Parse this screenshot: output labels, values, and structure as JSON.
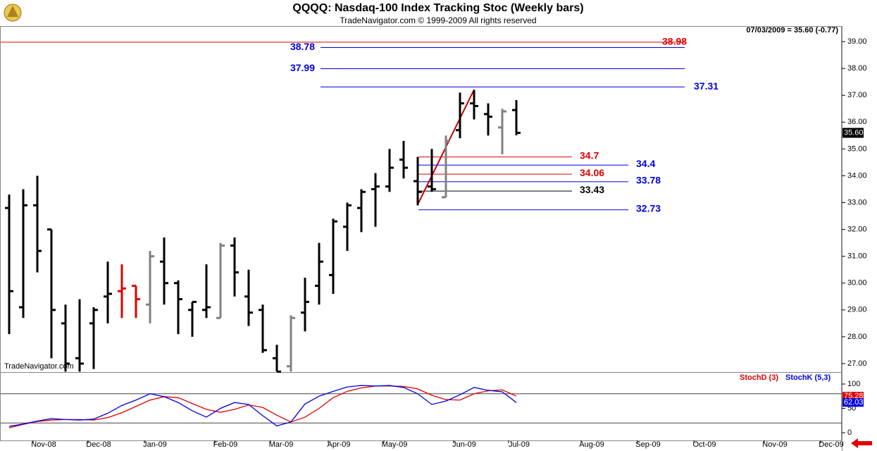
{
  "title": "QQQQ:  Nasdaq-100 Index Tracking Stoc  (Weekly bars)",
  "subtitle": "TradeNavigator.com © 1999-2009 All rights reserved",
  "status": "07/03/2009 = 35.60 (-0.77)",
  "watermark": "TradeNavigator.com",
  "chart_data": [
    {
      "type": "ohlc",
      "x": [
        0,
        1,
        2,
        3,
        4,
        5,
        6,
        7,
        8,
        9,
        10,
        11,
        12,
        13,
        14,
        15,
        16,
        17,
        18,
        19,
        20,
        21,
        22,
        23,
        24,
        25,
        26,
        27,
        28,
        29,
        30,
        31,
        32,
        33,
        34,
        35,
        36
      ],
      "open": [
        32.8,
        29.1,
        32.9,
        32.0,
        28.5,
        27.2,
        28.5,
        29.5,
        29.7,
        29.9,
        29.2,
        30.8,
        30.0,
        29.0,
        29.0,
        28.7,
        31.4,
        29.5,
        29.0,
        27.2,
        26.9,
        28.9,
        29.9,
        30.3,
        32.1,
        32.8,
        33.5,
        33.6,
        34.6,
        33.8,
        33.6,
        33.2,
        35.7,
        36.7,
        36.3,
        35.8,
        36.45
      ],
      "high": [
        33.3,
        33.5,
        34.0,
        32.0,
        29.2,
        29.4,
        29.1,
        30.8,
        30.7,
        29.9,
        31.2,
        31.7,
        30.1,
        29.3,
        30.7,
        31.5,
        31.7,
        30.5,
        29.2,
        27.7,
        28.8,
        30.2,
        31.5,
        32.4,
        33.0,
        33.5,
        34.1,
        35.0,
        35.3,
        34.7,
        35.0,
        35.5,
        37.1,
        37.2,
        36.7,
        36.5,
        36.82
      ],
      "low": [
        28.1,
        28.7,
        30.4,
        27.2,
        26.7,
        26.7,
        26.8,
        28.5,
        28.7,
        28.7,
        28.5,
        29.2,
        28.1,
        28.0,
        28.7,
        28.7,
        29.5,
        28.4,
        27.4,
        26.7,
        26.7,
        28.2,
        29.2,
        29.6,
        31.2,
        31.9,
        32.1,
        33.4,
        33.9,
        32.9,
        33.4,
        33.2,
        35.4,
        36.1,
        35.5,
        34.8,
        35.51
      ],
      "close": [
        29.7,
        32.9,
        31.2,
        29.0,
        27.0,
        27.0,
        29.0,
        29.6,
        29.8,
        29.4,
        31.0,
        30.0,
        29.4,
        29.3,
        29.1,
        31.4,
        30.4,
        28.9,
        27.5,
        26.7,
        28.7,
        29.3,
        30.8,
        32.3,
        32.9,
        33.4,
        33.6,
        34.3,
        34.3,
        33.4,
        33.5,
        35.3,
        36.7,
        36.6,
        36.2,
        36.4,
        35.6
      ],
      "colors": [
        "#000",
        "#000",
        "#000",
        "#000",
        "#000",
        "#000",
        "#000",
        "#000",
        "#e00000",
        "#e00000",
        "#808080",
        "#000",
        "#000",
        "#000",
        "#000",
        "#808080",
        "#000",
        "#000",
        "#000",
        "#000",
        "#808080",
        "#000",
        "#000",
        "#000",
        "#000",
        "#000",
        "#000",
        "#000",
        "#000",
        "#000",
        "#000",
        "#808080",
        "#000",
        "#000",
        "#000",
        "#808080",
        "#000"
      ],
      "last_close_label": "35.60",
      "levels": [
        {
          "value": 38.98,
          "color": "#e00000"
        },
        {
          "value": 38.78,
          "color": "#0000e0"
        },
        {
          "value": 37.99,
          "color": "#0000e0"
        },
        {
          "value": 37.31,
          "color": "#0000e0"
        },
        {
          "value": 34.7,
          "color": "#e00000"
        },
        {
          "value": 34.4,
          "color": "#0000e0"
        },
        {
          "value": 34.06,
          "color": "#e00000"
        },
        {
          "value": 33.78,
          "color": "#0000e0"
        },
        {
          "value": 33.43,
          "color": "#000"
        },
        {
          "value": 32.73,
          "color": "#0000e0"
        }
      ],
      "trendline": {
        "x": [
          29,
          33
        ],
        "y": [
          32.93,
          37.21
        ],
        "color": "#c00000"
      },
      "xlim": [
        -0.6,
        59.1
      ],
      "ylim": [
        26.71,
        39.58
      ],
      "yticks": [
        {
          "value": 27,
          "label": "27.00"
        },
        {
          "value": 28,
          "label": "28.00"
        },
        {
          "value": 29,
          "label": "29.00"
        },
        {
          "value": 30,
          "label": "30.00"
        },
        {
          "value": 31,
          "label": "31.00"
        },
        {
          "value": 32,
          "label": "32.00"
        },
        {
          "value": 33,
          "label": "33.00"
        },
        {
          "value": 34,
          "label": "34.00"
        },
        {
          "value": 35,
          "label": "35.00"
        },
        {
          "value": 36,
          "label": "36.00"
        },
        {
          "value": 37,
          "label": "37.00"
        },
        {
          "value": 38,
          "label": "38.00"
        },
        {
          "value": 39,
          "label": "39.00"
        }
      ]
    },
    {
      "type": "line",
      "x": [
        0,
        1,
        2,
        3,
        4,
        5,
        6,
        7,
        8,
        9,
        10,
        11,
        12,
        13,
        14,
        15,
        16,
        17,
        18,
        19,
        20,
        21,
        22,
        23,
        24,
        25,
        26,
        27,
        28,
        29,
        30,
        31,
        32,
        33,
        34,
        35,
        36
      ],
      "series": [
        {
          "name": "StochD (3)",
          "color": "#e00000",
          "values": [
            10,
            17,
            23,
            26,
            27,
            27,
            26,
            31,
            41,
            54,
            67,
            74,
            72,
            60,
            48,
            42,
            48,
            57,
            52,
            36,
            22,
            32,
            50,
            72,
            85,
            92,
            96,
            96,
            95,
            90,
            77,
            68,
            67,
            80,
            86,
            88,
            75.28
          ]
        },
        {
          "name": "StochK (5,3)",
          "color": "#0000e0",
          "values": [
            13,
            18,
            24,
            29,
            27,
            26,
            28,
            40,
            56,
            67,
            80,
            74,
            62,
            45,
            32,
            50,
            62,
            58,
            35,
            14,
            22,
            59,
            75,
            85,
            94,
            97,
            96,
            97,
            93,
            80,
            58,
            65,
            78,
            93,
            87,
            84,
            62.03
          ]
        }
      ],
      "hlines": [
        20,
        80
      ],
      "xlim": [
        -0.6,
        59.1
      ],
      "ylim": [
        -15.9,
        121.7
      ],
      "yticks": [
        0,
        50,
        100
      ],
      "xticks": [
        {
          "value": 2.45,
          "label": "Nov-08"
        },
        {
          "value": 6.35,
          "label": "Dec-08"
        },
        {
          "value": 10.35,
          "label": "Jan-09"
        },
        {
          "value": 15.35,
          "label": "Feb-09"
        },
        {
          "value": 19.3,
          "label": "Mar-09"
        },
        {
          "value": 23.4,
          "label": "Apr-09"
        },
        {
          "value": 27.35,
          "label": "May-09"
        },
        {
          "value": 32.3,
          "label": "Jun-09"
        },
        {
          "value": 36.2,
          "label": "Jul-09"
        },
        {
          "value": 41.35,
          "label": "Aug-09"
        },
        {
          "value": 45.35,
          "label": "Sep-09"
        },
        {
          "value": 49.35,
          "label": "Oct-09"
        },
        {
          "value": 54.35,
          "label": "Nov-09"
        },
        {
          "value": 58.35,
          "label": "Dec-09"
        }
      ]
    }
  ]
}
